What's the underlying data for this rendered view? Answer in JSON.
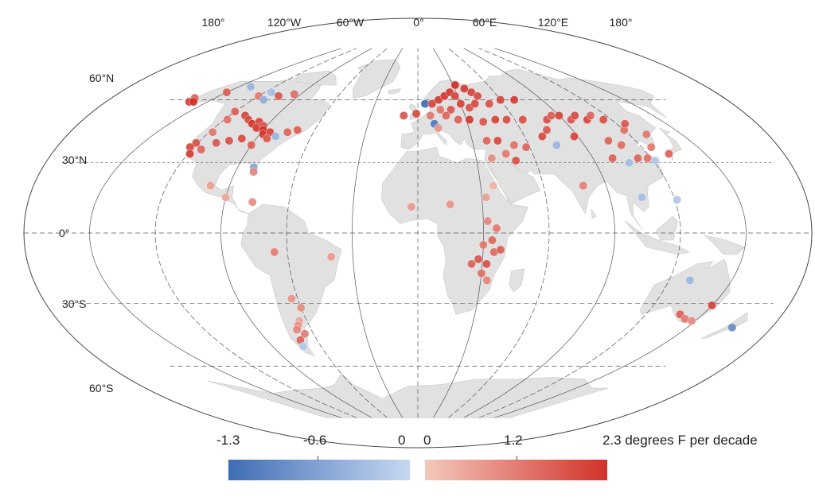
{
  "map": {
    "longitude_labels": [
      "180°",
      "120°W",
      "60°W",
      "0°",
      "60°E",
      "120°E",
      "180°"
    ],
    "latitude_labels": [
      "60°N",
      "30°N",
      "0°",
      "30°S",
      "60°S"
    ],
    "land_color": "#e1e1e1",
    "graticule_color": "#555555"
  },
  "legend": {
    "negative": {
      "min_label": "-1.3",
      "mid_label": "-0.6",
      "max_label": "0",
      "color_low": "#3f6db4",
      "color_high": "#c6d8f2"
    },
    "positive": {
      "min_label": "0",
      "mid_label": "1.2",
      "max_label": "2.3 degrees F per decade",
      "color_low": "#f4c8bc",
      "color_high": "#d1322a"
    }
  },
  "stations": [
    {
      "lon": -165,
      "lat": 61,
      "v": 1.5
    },
    {
      "lon": -163,
      "lat": 59,
      "v": 2.1
    },
    {
      "lon": -160,
      "lat": 59,
      "v": 2.3
    },
    {
      "lon": -150,
      "lat": 64,
      "v": 1.6
    },
    {
      "lon": -140,
      "lat": 67,
      "v": -0.4
    },
    {
      "lon": -120,
      "lat": 62,
      "v": 1.2
    },
    {
      "lon": -115,
      "lat": 64,
      "v": -0.3
    },
    {
      "lon": -105,
      "lat": 62,
      "v": 1.7
    },
    {
      "lon": -95,
      "lat": 63,
      "v": 1.4
    },
    {
      "lon": -112,
      "lat": 60,
      "v": -0.5
    },
    {
      "lon": -120,
      "lat": 54,
      "v": 1.6
    },
    {
      "lon": -118,
      "lat": 50,
      "v": 1.3
    },
    {
      "lon": -110,
      "lat": 52,
      "v": 2.0
    },
    {
      "lon": -105,
      "lat": 50,
      "v": 1.9
    },
    {
      "lon": -100,
      "lat": 48,
      "v": 2.2
    },
    {
      "lon": -97,
      "lat": 49,
      "v": 2.0
    },
    {
      "lon": -95,
      "lat": 46,
      "v": 2.1
    },
    {
      "lon": -92,
      "lat": 47,
      "v": 1.8
    },
    {
      "lon": -90,
      "lat": 45,
      "v": 2.3
    },
    {
      "lon": -88,
      "lat": 43,
      "v": 2.2
    },
    {
      "lon": -85,
      "lat": 44,
      "v": 2.0
    },
    {
      "lon": -84,
      "lat": 41,
      "v": 1.7
    },
    {
      "lon": -80,
      "lat": 42,
      "v": -0.4
    },
    {
      "lon": -75,
      "lat": 44,
      "v": 1.5
    },
    {
      "lon": -70,
      "lat": 45,
      "v": 1.6
    },
    {
      "lon": -98,
      "lat": 41,
      "v": 1.9
    },
    {
      "lon": -104,
      "lat": 40,
      "v": 1.8
    },
    {
      "lon": -90,
      "lat": 38,
      "v": 1.6
    },
    {
      "lon": -110,
      "lat": 39,
      "v": 1.7
    },
    {
      "lon": -115,
      "lat": 36,
      "v": 1.5
    },
    {
      "lon": -121,
      "lat": 39,
      "v": 1.8
    },
    {
      "lon": -122,
      "lat": 37,
      "v": 1.9
    },
    {
      "lon": -119,
      "lat": 34,
      "v": 2.1
    },
    {
      "lon": -118,
      "lat": 44,
      "v": 1.2
    },
    {
      "lon": -82,
      "lat": 28,
      "v": -0.6
    },
    {
      "lon": -81,
      "lat": 26,
      "v": 1.0
    },
    {
      "lon": -99,
      "lat": 20,
      "v": 0.6
    },
    {
      "lon": -90,
      "lat": 15,
      "v": 0.5
    },
    {
      "lon": -77,
      "lat": 13,
      "v": 0.9
    },
    {
      "lon": -66,
      "lat": -8,
      "v": 1.1
    },
    {
      "lon": -40,
      "lat": -10,
      "v": 0.7
    },
    {
      "lon": -63,
      "lat": -28,
      "v": 0.8
    },
    {
      "lon": -60,
      "lat": -32,
      "v": 0.9
    },
    {
      "lon": -64,
      "lat": -38,
      "v": 0.5
    },
    {
      "lon": -66,
      "lat": -40,
      "v": 0.8
    },
    {
      "lon": -68,
      "lat": -42,
      "v": 1.0
    },
    {
      "lon": -65,
      "lat": -44,
      "v": 1.1
    },
    {
      "lon": -70,
      "lat": -47,
      "v": 1.5
    },
    {
      "lon": -71,
      "lat": -50,
      "v": -0.2
    },
    {
      "lon": -9,
      "lat": 52,
      "v": 1.7
    },
    {
      "lon": -1,
      "lat": 53,
      "v": 1.9
    },
    {
      "lon": 5,
      "lat": 58,
      "v": -1.3
    },
    {
      "lon": 8,
      "lat": 52,
      "v": 1.2
    },
    {
      "lon": 10,
      "lat": 48,
      "v": -1.1
    },
    {
      "lon": 12,
      "lat": 46,
      "v": 0.8
    },
    {
      "lon": 10,
      "lat": 58,
      "v": 2.0
    },
    {
      "lon": 15,
      "lat": 60,
      "v": 2.1
    },
    {
      "lon": 20,
      "lat": 62,
      "v": 2.2
    },
    {
      "lon": 25,
      "lat": 64,
      "v": 2.2
    },
    {
      "lon": 28,
      "lat": 62,
      "v": 2.0
    },
    {
      "lon": 32,
      "lat": 68,
      "v": 2.3
    },
    {
      "lon": 38,
      "lat": 66,
      "v": 2.1
    },
    {
      "lon": 42,
      "lat": 64,
      "v": 2.0
    },
    {
      "lon": 45,
      "lat": 62,
      "v": 1.9
    },
    {
      "lon": 30,
      "lat": 58,
      "v": 2.0
    },
    {
      "lon": 35,
      "lat": 56,
      "v": 1.8
    },
    {
      "lon": 40,
      "lat": 58,
      "v": 1.9
    },
    {
      "lon": 22,
      "lat": 55,
      "v": 1.7
    },
    {
      "lon": 15,
      "lat": 55,
      "v": 1.3
    },
    {
      "lon": 18,
      "lat": 52,
      "v": 1.5
    },
    {
      "lon": 50,
      "lat": 58,
      "v": 1.8
    },
    {
      "lon": 60,
      "lat": 60,
      "v": 2.0
    },
    {
      "lon": 70,
      "lat": 60,
      "v": 2.1
    },
    {
      "lon": 25,
      "lat": 50,
      "v": 1.6
    },
    {
      "lon": 32,
      "lat": 50,
      "v": 2.2
    },
    {
      "lon": 40,
      "lat": 49,
      "v": 1.7
    },
    {
      "lon": 48,
      "lat": 50,
      "v": 2.0
    },
    {
      "lon": 55,
      "lat": 50,
      "v": 1.9
    },
    {
      "lon": 65,
      "lat": 50,
      "v": 1.8
    },
    {
      "lon": 38,
      "lat": 40,
      "v": 1.5
    },
    {
      "lon": 44,
      "lat": 40,
      "v": 1.9
    },
    {
      "lon": 52,
      "lat": 38,
      "v": 1.3
    },
    {
      "lon": 58,
      "lat": 37,
      "v": 1.5
    },
    {
      "lon": 46,
      "lat": 34,
      "v": 1.2
    },
    {
      "lon": 50,
      "lat": 31,
      "v": 1.8
    },
    {
      "lon": 38,
      "lat": 32,
      "v": 0.9
    },
    {
      "lon": 70,
      "lat": 42,
      "v": 1.9
    },
    {
      "lon": 75,
      "lat": 45,
      "v": 1.7
    },
    {
      "lon": 80,
      "lat": 50,
      "v": 1.8
    },
    {
      "lon": 85,
      "lat": 52,
      "v": 1.6
    },
    {
      "lon": 90,
      "lat": 52,
      "v": 2.0
    },
    {
      "lon": 95,
      "lat": 50,
      "v": 1.7
    },
    {
      "lon": 100,
      "lat": 52,
      "v": 1.9
    },
    {
      "lon": 105,
      "lat": 50,
      "v": 2.0
    },
    {
      "lon": 110,
      "lat": 52,
      "v": 1.5
    },
    {
      "lon": 115,
      "lat": 50,
      "v": 1.8
    },
    {
      "lon": 120,
      "lat": 45,
      "v": 1.3
    },
    {
      "lon": 125,
      "lat": 48,
      "v": 1.7
    },
    {
      "lon": 130,
      "lat": 43,
      "v": 1.2
    },
    {
      "lon": 105,
      "lat": 40,
      "v": 1.5
    },
    {
      "lon": 110,
      "lat": 38,
      "v": 1.4
    },
    {
      "lon": 88,
      "lat": 42,
      "v": 2.0
    },
    {
      "lon": 75,
      "lat": 38,
      "v": -0.4
    },
    {
      "lon": 100,
      "lat": 32,
      "v": 1.6
    },
    {
      "lon": 107,
      "lat": 30,
      "v": -0.3
    },
    {
      "lon": 113,
      "lat": 32,
      "v": 1.5
    },
    {
      "lon": 118,
      "lat": 32,
      "v": 1.3
    },
    {
      "lon": 121,
      "lat": 31,
      "v": -0.2
    },
    {
      "lon": 125,
      "lat": 37,
      "v": 1.2
    },
    {
      "lon": 131,
      "lat": 34,
      "v": 1.5
    },
    {
      "lon": 79,
      "lat": 20,
      "v": 1.1
    },
    {
      "lon": 105,
      "lat": 15,
      "v": -0.3
    },
    {
      "lon": 121,
      "lat": 14,
      "v": -0.2
    },
    {
      "lon": 32,
      "lat": 15,
      "v": 0.6
    },
    {
      "lon": 36,
      "lat": 20,
      "v": 0.3
    },
    {
      "lon": 15,
      "lat": 12,
      "v": 0.8
    },
    {
      "lon": -3,
      "lat": 11,
      "v": 0.7
    },
    {
      "lon": 32,
      "lat": 5,
      "v": 1.0
    },
    {
      "lon": 36,
      "lat": 2,
      "v": 1.2
    },
    {
      "lon": 34,
      "lat": -3,
      "v": 1.5
    },
    {
      "lon": 30,
      "lat": -5,
      "v": 1.2
    },
    {
      "lon": 35,
      "lat": -8,
      "v": 1.4
    },
    {
      "lon": 28,
      "lat": -11,
      "v": 1.7
    },
    {
      "lon": 32,
      "lat": -13,
      "v": 1.8
    },
    {
      "lon": 25,
      "lat": -13,
      "v": 1.5
    },
    {
      "lon": 30,
      "lat": -17,
      "v": 1.3
    },
    {
      "lon": 33,
      "lat": -20,
      "v": 1.0
    },
    {
      "lon": 38,
      "lat": -7,
      "v": 1.6
    },
    {
      "lon": 130,
      "lat": -20,
      "v": -0.4
    },
    {
      "lon": 150,
      "lat": -31,
      "v": 2.0
    },
    {
      "lon": 138,
      "lat": -35,
      "v": 1.6
    },
    {
      "lon": 143,
      "lat": -37,
      "v": 1.2
    },
    {
      "lon": 148,
      "lat": -38,
      "v": 0.9
    },
    {
      "lon": 175,
      "lat": -41,
      "v": -0.9
    }
  ]
}
